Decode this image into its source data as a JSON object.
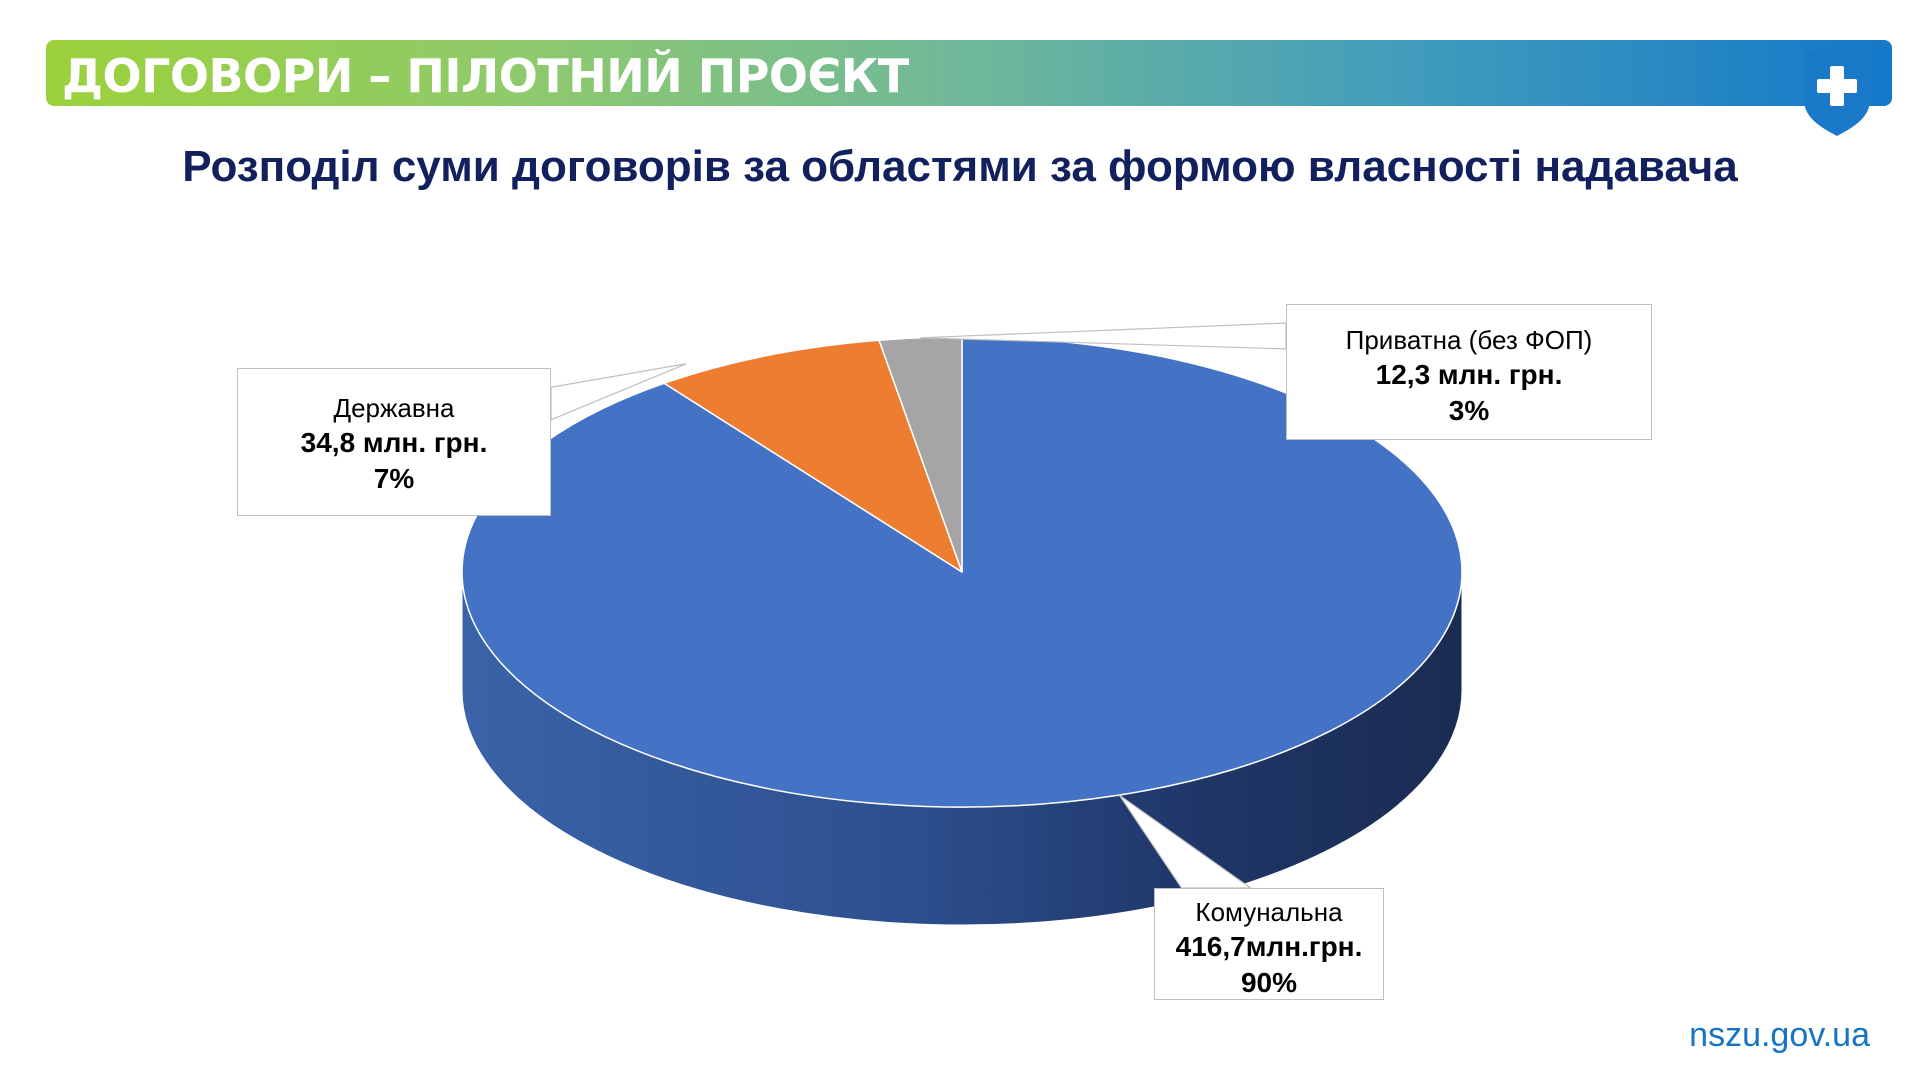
{
  "header": {
    "title": "ДОГОВОРИ – ПІЛОТНИЙ ПРОЄКТ",
    "logo_icon": "shield-plus-icon"
  },
  "subtitle": "Розподіл суми договорів за областями за формою власності надавача",
  "chart_data": {
    "type": "pie",
    "style": "3d",
    "title": "",
    "slices": [
      {
        "category": "Комунальна",
        "value": 416.7,
        "value_label": "416,7млн.грн.",
        "percent": 90,
        "percent_label": "90%",
        "color": "#4472c4"
      },
      {
        "category": "Державна",
        "value": 34.8,
        "value_label": "34,8 млн. грн.",
        "percent": 7,
        "percent_label": "7%",
        "color": "#ed7d31"
      },
      {
        "category": "Приватна (без ФОП)",
        "value": 12.3,
        "value_label": "12,3  млн. грн.",
        "percent": 3,
        "percent_label": "3%",
        "color": "#a5a5a5"
      }
    ],
    "legend": "none",
    "labels": "callouts"
  },
  "footer": {
    "site": "nszu.gov.ua"
  }
}
